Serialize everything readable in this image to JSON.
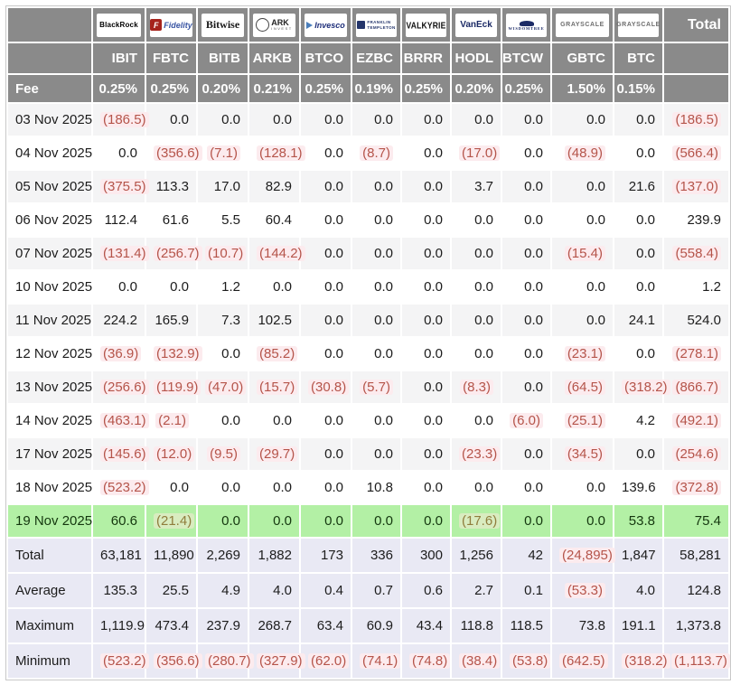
{
  "table": {
    "total_header": "Total",
    "fee_label": "Fee",
    "providers": [
      {
        "name": "BlackRock",
        "ticker": "IBIT",
        "fee": "0.25%",
        "logo_text": "BlackRock"
      },
      {
        "name": "Fidelity",
        "ticker": "FBTC",
        "fee": "0.25%",
        "logo_mark": "F",
        "logo_text": "Fidelity"
      },
      {
        "name": "Bitwise",
        "ticker": "BITB",
        "fee": "0.20%",
        "logo_text": "Bitwise"
      },
      {
        "name": "ARK Invest",
        "ticker": "ARKB",
        "fee": "0.21%",
        "logo_text": "ARK",
        "logo_sub": "INVEST"
      },
      {
        "name": "Invesco",
        "ticker": "BTCO",
        "fee": "0.25%",
        "logo_text": "Invesco"
      },
      {
        "name": "Franklin Templeton",
        "ticker": "EZBC",
        "fee": "0.19%",
        "logo_line1": "FRANKLIN",
        "logo_line2": "TEMPLETON"
      },
      {
        "name": "Valkyrie",
        "ticker": "BRRR",
        "fee": "0.25%",
        "logo_text": "VALKYRIE"
      },
      {
        "name": "VanEck",
        "ticker": "HODL",
        "fee": "0.20%",
        "logo_text": "VanEck"
      },
      {
        "name": "WisdomTree",
        "ticker": "BTCW",
        "fee": "0.25%",
        "logo_text": "WISDOMTREE"
      },
      {
        "name": "Grayscale",
        "ticker": "GBTC",
        "fee": "1.50%",
        "logo_text": "GRAYSCALE"
      },
      {
        "name": "Grayscale",
        "ticker": "BTC",
        "fee": "0.15%",
        "logo_text": "GRAYSCALE"
      }
    ],
    "rows": [
      {
        "label": "03 Nov 2025",
        "highlight": false,
        "values": [
          "(186.5)",
          "0.0",
          "0.0",
          "0.0",
          "0.0",
          "0.0",
          "0.0",
          "0.0",
          "0.0",
          "0.0",
          "0.0",
          "(186.5)"
        ]
      },
      {
        "label": "04 Nov 2025",
        "highlight": false,
        "values": [
          "0.0",
          "(356.6)",
          "(7.1)",
          "(128.1)",
          "0.0",
          "(8.7)",
          "0.0",
          "(17.0)",
          "0.0",
          "(48.9)",
          "0.0",
          "(566.4)"
        ]
      },
      {
        "label": "05 Nov 2025",
        "highlight": false,
        "values": [
          "(375.5)",
          "113.3",
          "17.0",
          "82.9",
          "0.0",
          "0.0",
          "0.0",
          "3.7",
          "0.0",
          "0.0",
          "21.6",
          "(137.0)"
        ]
      },
      {
        "label": "06 Nov 2025",
        "highlight": false,
        "values": [
          "112.4",
          "61.6",
          "5.5",
          "60.4",
          "0.0",
          "0.0",
          "0.0",
          "0.0",
          "0.0",
          "0.0",
          "0.0",
          "239.9"
        ]
      },
      {
        "label": "07 Nov 2025",
        "highlight": false,
        "values": [
          "(131.4)",
          "(256.7)",
          "(10.7)",
          "(144.2)",
          "0.0",
          "0.0",
          "0.0",
          "0.0",
          "0.0",
          "(15.4)",
          "0.0",
          "(558.4)"
        ]
      },
      {
        "label": "10 Nov 2025",
        "highlight": false,
        "values": [
          "0.0",
          "0.0",
          "1.2",
          "0.0",
          "0.0",
          "0.0",
          "0.0",
          "0.0",
          "0.0",
          "0.0",
          "0.0",
          "1.2"
        ]
      },
      {
        "label": "11 Nov 2025",
        "highlight": false,
        "values": [
          "224.2",
          "165.9",
          "7.3",
          "102.5",
          "0.0",
          "0.0",
          "0.0",
          "0.0",
          "0.0",
          "0.0",
          "24.1",
          "524.0"
        ]
      },
      {
        "label": "12 Nov 2025",
        "highlight": false,
        "values": [
          "(36.9)",
          "(132.9)",
          "0.0",
          "(85.2)",
          "0.0",
          "0.0",
          "0.0",
          "0.0",
          "0.0",
          "(23.1)",
          "0.0",
          "(278.1)"
        ]
      },
      {
        "label": "13 Nov 2025",
        "highlight": false,
        "values": [
          "(256.6)",
          "(119.9)",
          "(47.0)",
          "(15.7)",
          "(30.8)",
          "(5.7)",
          "0.0",
          "(8.3)",
          "0.0",
          "(64.5)",
          "(318.2)",
          "(866.7)"
        ]
      },
      {
        "label": "14 Nov 2025",
        "highlight": false,
        "values": [
          "(463.1)",
          "(2.1)",
          "0.0",
          "0.0",
          "0.0",
          "0.0",
          "0.0",
          "0.0",
          "(6.0)",
          "(25.1)",
          "4.2",
          "(492.1)"
        ]
      },
      {
        "label": "17 Nov 2025",
        "highlight": false,
        "values": [
          "(145.6)",
          "(12.0)",
          "(9.5)",
          "(29.7)",
          "0.0",
          "0.0",
          "0.0",
          "(23.3)",
          "0.0",
          "(34.5)",
          "0.0",
          "(254.6)"
        ]
      },
      {
        "label": "18 Nov 2025",
        "highlight": false,
        "values": [
          "(523.2)",
          "0.0",
          "0.0",
          "0.0",
          "0.0",
          "10.8",
          "0.0",
          "0.0",
          "0.0",
          "0.0",
          "139.6",
          "(372.8)"
        ]
      },
      {
        "label": "19 Nov 2025",
        "highlight": true,
        "values": [
          "60.6",
          "(21.4)",
          "0.0",
          "0.0",
          "0.0",
          "0.0",
          "0.0",
          "(17.6)",
          "0.0",
          "0.0",
          "53.8",
          "75.4"
        ]
      }
    ],
    "summary_rows": [
      {
        "label": "Total",
        "values": [
          "63,181",
          "11,890",
          "2,269",
          "1,882",
          "173",
          "336",
          "300",
          "1,256",
          "42",
          "(24,895)",
          "1,847",
          "58,281"
        ]
      },
      {
        "label": "Average",
        "values": [
          "135.3",
          "25.5",
          "4.9",
          "4.0",
          "0.4",
          "0.7",
          "0.6",
          "2.7",
          "0.1",
          "(53.3)",
          "4.0",
          "124.8"
        ]
      },
      {
        "label": "Maximum",
        "values": [
          "1,119.9",
          "473.4",
          "237.9",
          "268.7",
          "63.4",
          "60.9",
          "43.4",
          "118.8",
          "118.5",
          "73.8",
          "191.1",
          "1,373.8"
        ]
      },
      {
        "label": "Minimum",
        "values": [
          "(523.2)",
          "(356.6)",
          "(280.7)",
          "(327.9)",
          "(62.0)",
          "(74.1)",
          "(74.8)",
          "(38.4)",
          "(53.8)",
          "(642.5)",
          "(318.2)",
          "(1,113.7)"
        ]
      }
    ],
    "colors": {
      "header_bg": "#8a8a8a",
      "stripe_bg": "#f4f4f5",
      "latest_row_bg": "#b3f0a5",
      "summary_bg": "#e9e9f4",
      "negative_text": "#b5544a",
      "negative_highlight": "#fcebee"
    }
  }
}
